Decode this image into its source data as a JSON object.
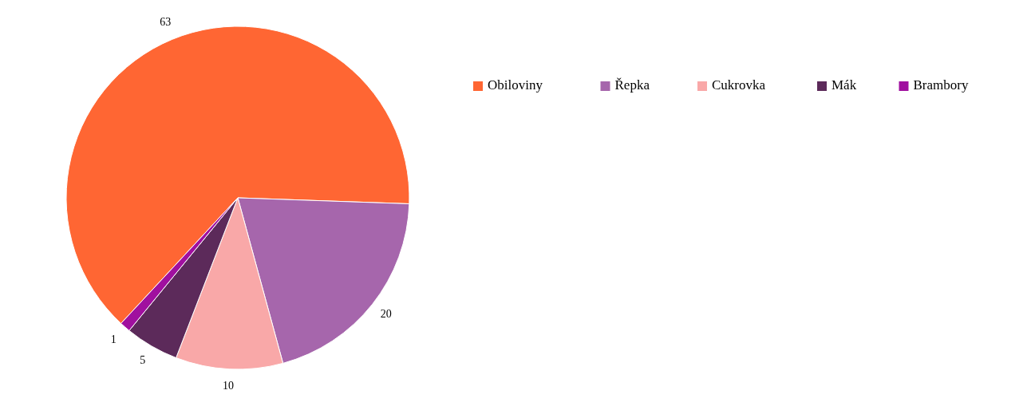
{
  "chart_data": {
    "type": "pie",
    "categories": [
      "Obiloviny",
      "Řepka",
      "Cukrovka",
      "Mák",
      "Brambory"
    ],
    "values": [
      63,
      20,
      10,
      5,
      1
    ],
    "colors": [
      "#ff6633",
      "#a666ac",
      "#f9a8a8",
      "#5c2a5a",
      "#a0109f"
    ],
    "data_labels": true,
    "legend": "top right"
  }
}
